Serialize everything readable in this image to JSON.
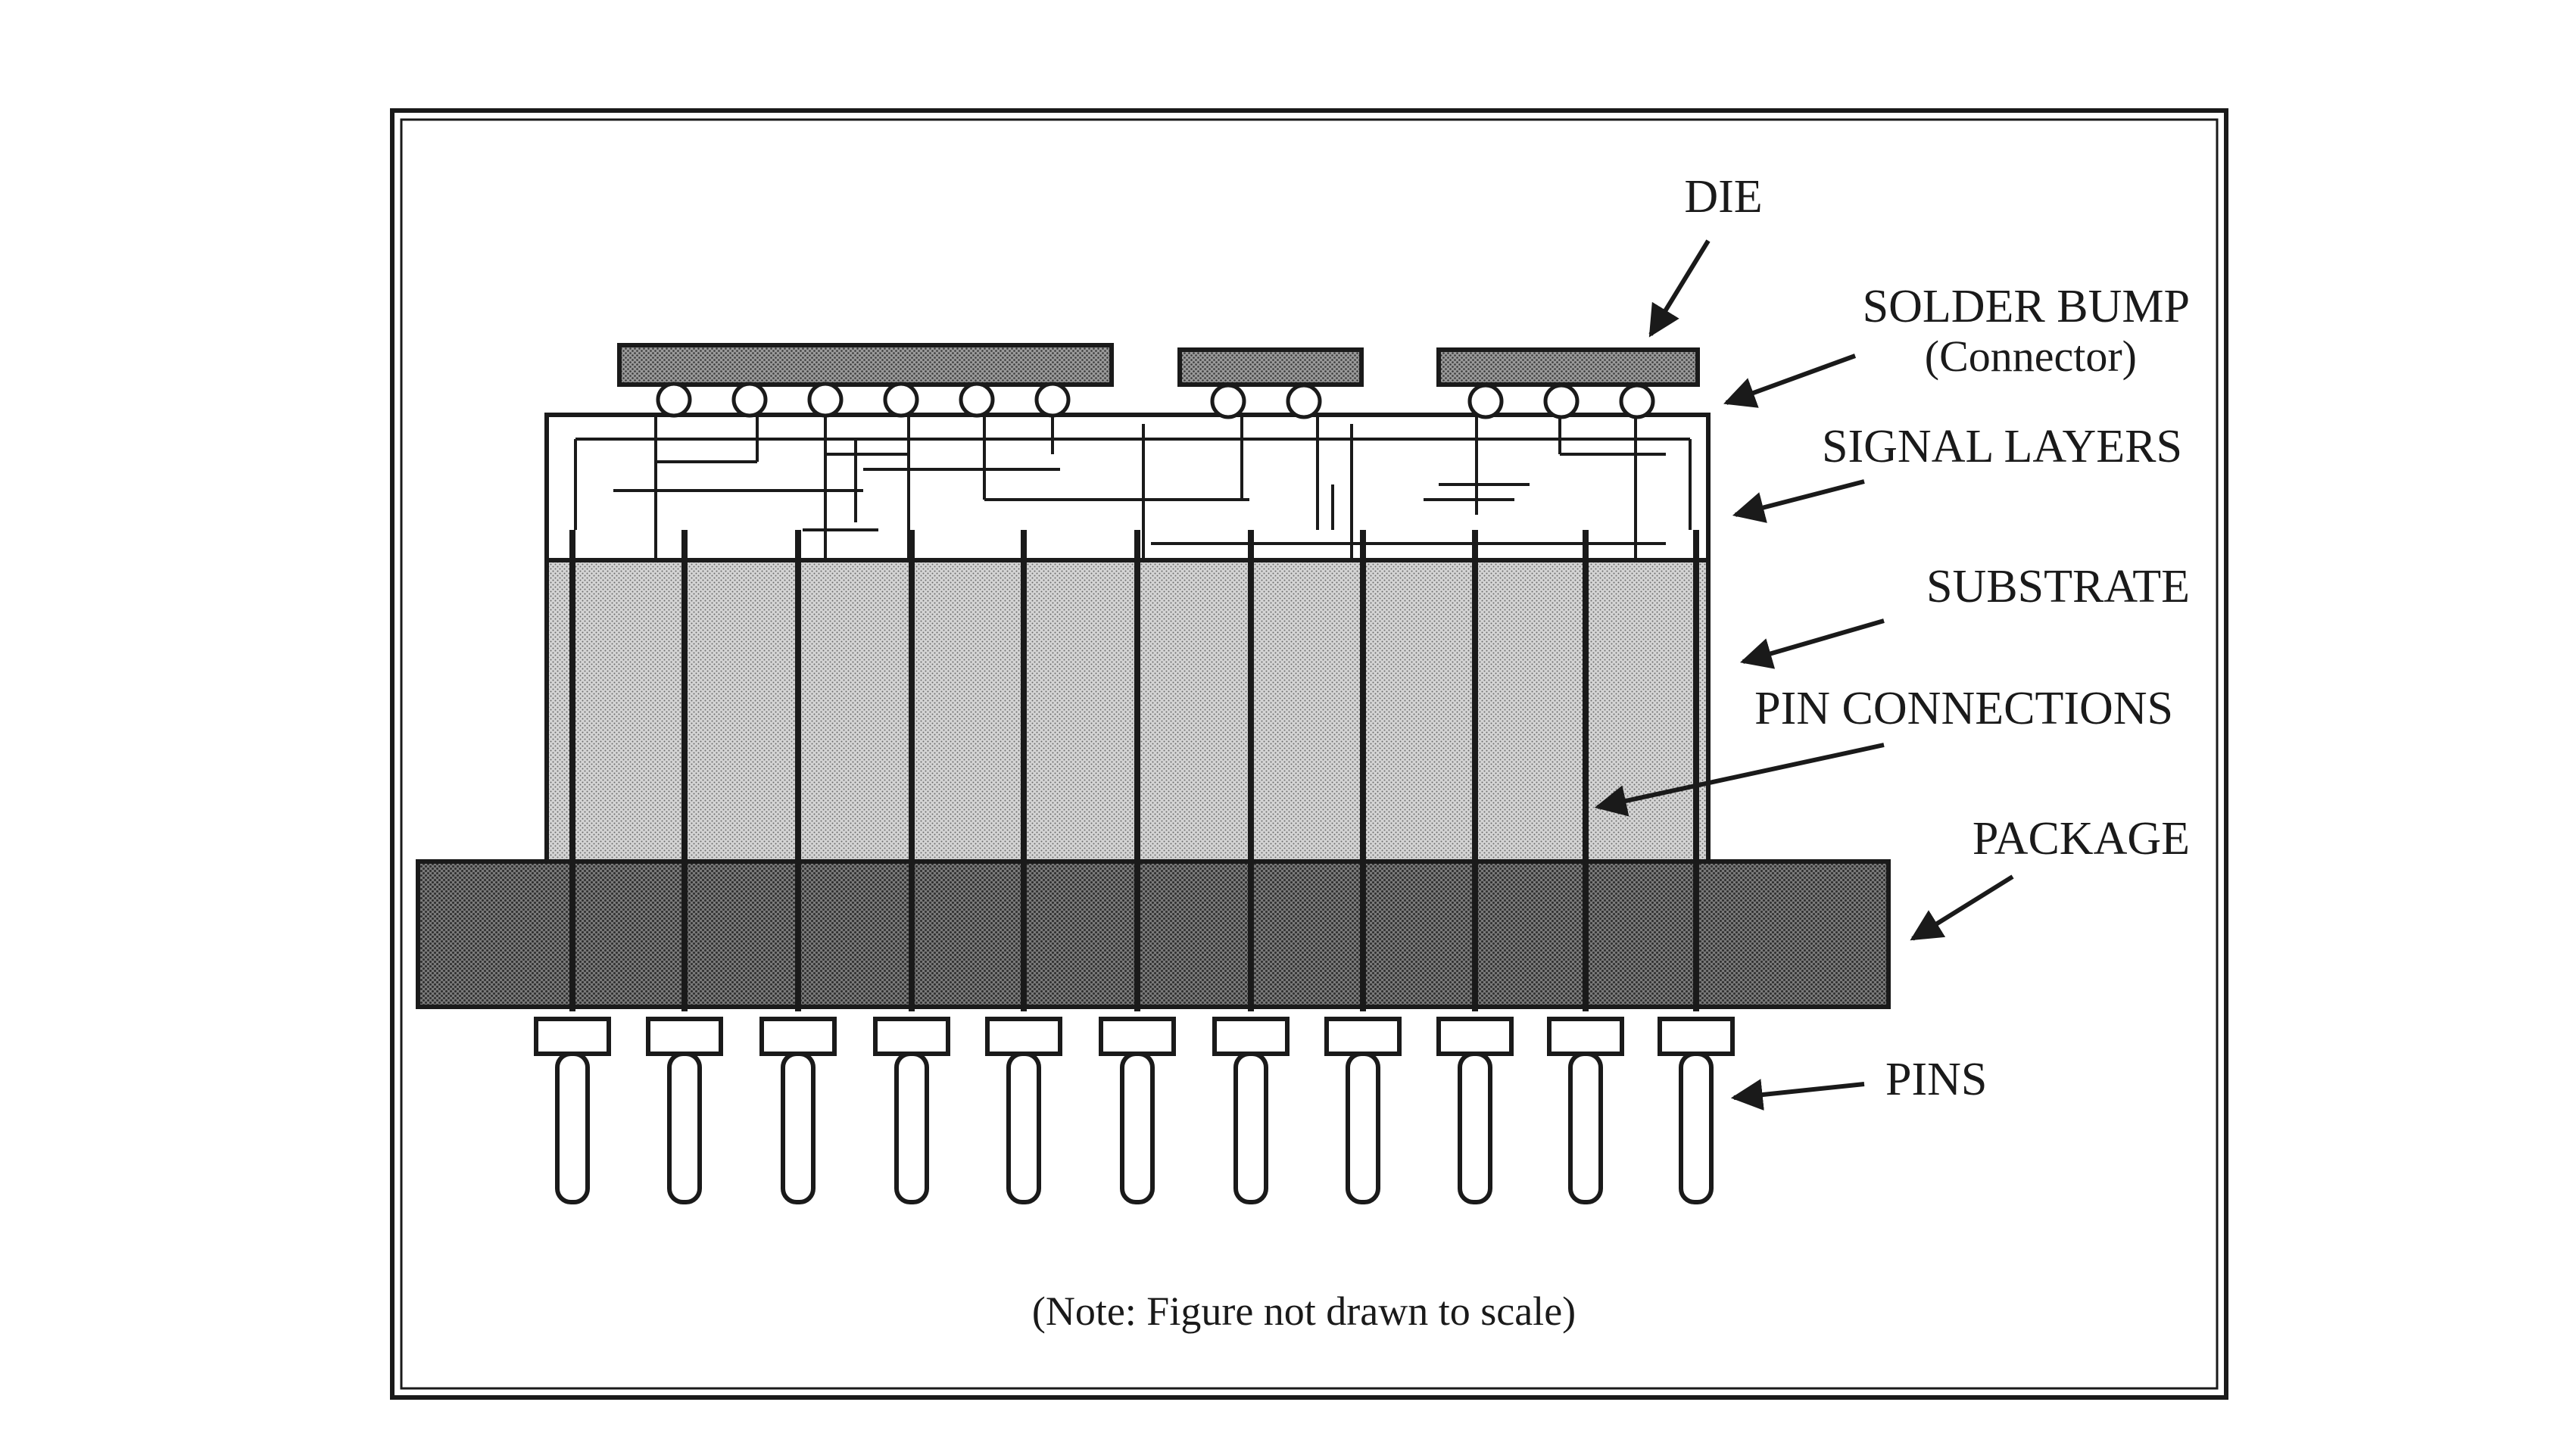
{
  "labels": {
    "die": "DIE",
    "solder_bump": "SOLDER BUMP",
    "solder_bump_sub": "(Connector)",
    "signal_layers": "SIGNAL LAYERS",
    "substrate": "SUBSTRATE",
    "pin_connections": "PIN CONNECTIONS",
    "package": "PACKAGE",
    "pins": "PINS"
  },
  "note": "(Note: Figure not drawn to scale)",
  "colors": {
    "ink": "#1a1a1a",
    "die_fill": "#8a8a8a",
    "substrate_fill": "#c6c6c6",
    "package_fill": "#707070",
    "background": "#ffffff"
  }
}
